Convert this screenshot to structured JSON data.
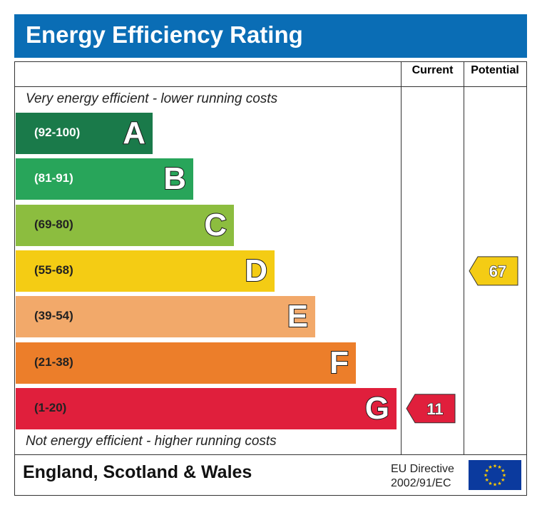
{
  "title": "Energy Efficiency Rating",
  "columns": {
    "current": "Current",
    "potential": "Potential"
  },
  "notes": {
    "top": "Very energy efficient - lower running costs",
    "bottom": "Not energy efficient - higher running costs"
  },
  "footer": {
    "region": "England, Scotland & Wales",
    "directive_line1": "EU Directive",
    "directive_line2": "2002/91/EC"
  },
  "chart_data": {
    "type": "bar",
    "categories": [
      "A",
      "B",
      "C",
      "D",
      "E",
      "F",
      "G"
    ],
    "bands": [
      {
        "letter": "A",
        "range": "(92-100)",
        "min": 92,
        "max": 100,
        "color": "#1a7a4a",
        "range_color": "#ffffff"
      },
      {
        "letter": "B",
        "range": "(81-91)",
        "min": 81,
        "max": 91,
        "color": "#28a55a",
        "range_color": "#ffffff"
      },
      {
        "letter": "C",
        "range": "(69-80)",
        "min": 69,
        "max": 80,
        "color": "#8cbd3f",
        "range_color": "#222222"
      },
      {
        "letter": "D",
        "range": "(55-68)",
        "min": 55,
        "max": 68,
        "color": "#f4cc14",
        "range_color": "#222222"
      },
      {
        "letter": "E",
        "range": "(39-54)",
        "min": 39,
        "max": 54,
        "color": "#f2a96a",
        "range_color": "#222222"
      },
      {
        "letter": "F",
        "range": "(21-38)",
        "min": 21,
        "max": 38,
        "color": "#ec7e2a",
        "range_color": "#222222"
      },
      {
        "letter": "G",
        "range": "(1-20)",
        "min": 1,
        "max": 20,
        "color": "#e01f3c",
        "range_color": "#222222"
      }
    ],
    "current": {
      "value": 11,
      "band": "G",
      "color": "#e01f3c"
    },
    "potential": {
      "value": 67,
      "band": "D",
      "color": "#f4cc14"
    }
  }
}
